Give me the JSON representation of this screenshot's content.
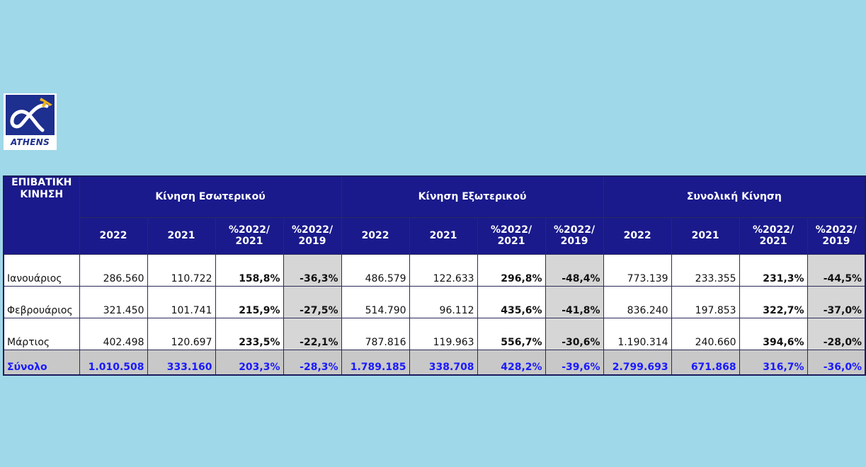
{
  "logo": {
    "text": "ATHENS"
  },
  "table": {
    "corner_label": "ΕΠΙΒΑΤΙΚΗ ΚΙΝΗΣΗ",
    "groups": [
      "Κίνηση Εσωτερικού",
      "Κίνηση Εξωτερικού",
      "Συνολική Κίνηση"
    ],
    "subheaders": [
      "2022",
      "2021",
      "%2022/ 2021",
      "%2022/ 2019"
    ],
    "rows": [
      {
        "month": "Ιανουάριος",
        "values": [
          "286.560",
          "110.722",
          "158,8%",
          "-36,3%",
          "486.579",
          "122.633",
          "296,8%",
          "-48,4%",
          "773.139",
          "233.355",
          "231,3%",
          "-44,5%"
        ]
      },
      {
        "month": "Φεβρουάριος",
        "values": [
          "321.450",
          "101.741",
          "215,9%",
          "-27,5%",
          "514.790",
          "96.112",
          "435,6%",
          "-41,8%",
          "836.240",
          "197.853",
          "322,7%",
          "-37,0%"
        ]
      },
      {
        "month": "Μάρτιος",
        "values": [
          "402.498",
          "120.697",
          "233,5%",
          "-22,1%",
          "787.816",
          "119.963",
          "556,7%",
          "-30,6%",
          "1.190.314",
          "240.660",
          "394,6%",
          "-28,0%"
        ]
      }
    ],
    "total": {
      "month": "Σύνολο",
      "values": [
        "1.010.508",
        "333.160",
        "203,3%",
        "-28,3%",
        "1.789.185",
        "338.708",
        "428,2%",
        "-39,6%",
        "2.799.693",
        "671.868",
        "316,7%",
        "-36,0%"
      ]
    }
  }
}
